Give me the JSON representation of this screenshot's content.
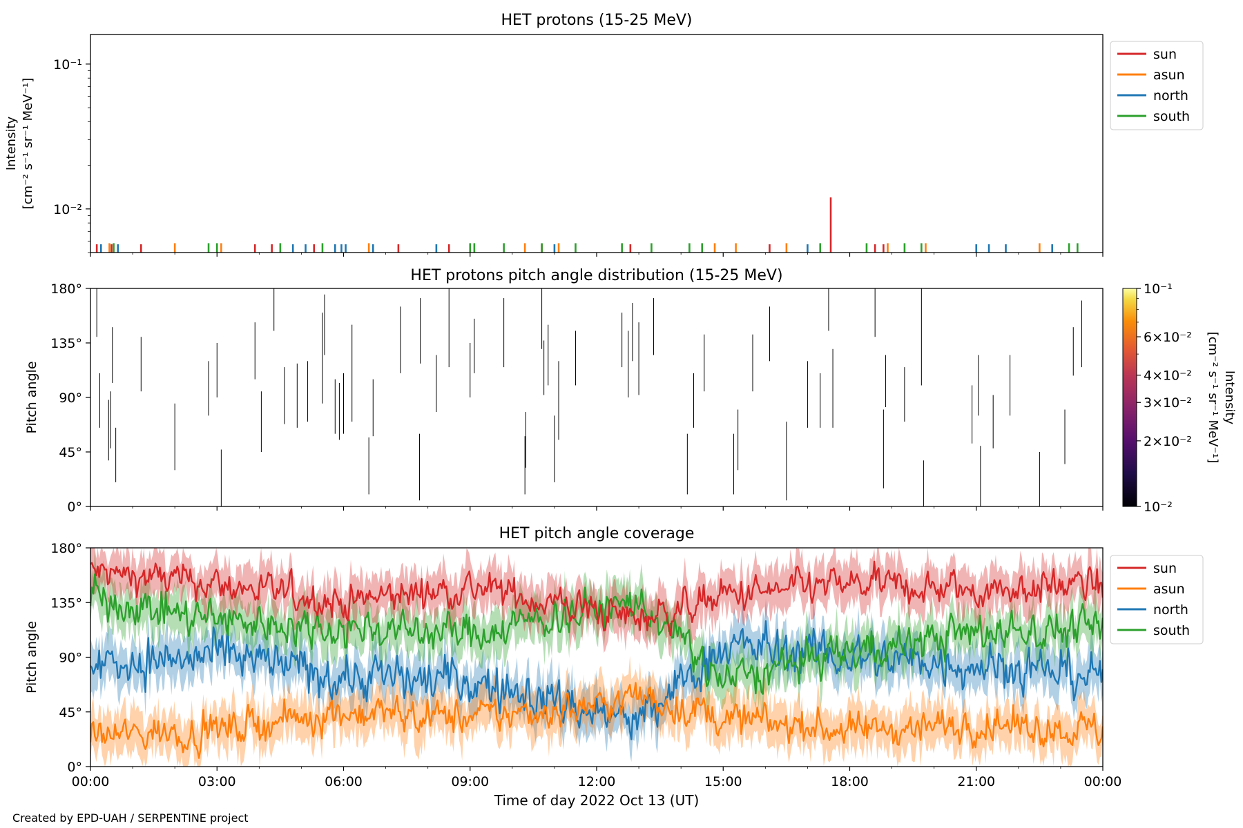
{
  "colors": {
    "sun": "#d62728",
    "asun": "#ff7f0e",
    "north": "#1f77b4",
    "south": "#2ca02c"
  },
  "credit": "Created by EPD-UAH / SERPENTINE project",
  "chart_data": [
    {
      "type": "line",
      "title": "HET protons (15-25 MeV)",
      "ylabel_line1": "Intensity",
      "ylabel_line2": "[cm⁻² s⁻¹ sr⁻¹ MeV⁻¹]",
      "yscale": "log",
      "ylim": [
        0.005,
        0.16
      ],
      "xlim_hours": [
        0,
        24
      ],
      "yticks": [
        {
          "v": 0.1,
          "label": "10⁻¹"
        },
        {
          "v": 0.01,
          "label": "10⁻²"
        }
      ],
      "legend": {
        "placement": "upper-right-outside",
        "entries": [
          "sun",
          "asun",
          "north",
          "south"
        ]
      },
      "series": [
        {
          "name": "sun",
          "base": 0.0057,
          "x": [
            0.15,
            0.5,
            1.2,
            3.9,
            4.3,
            5.3,
            7.3,
            8.5,
            10.7,
            12.8,
            16.1,
            17.55,
            18.6,
            18.8
          ],
          "peak": {
            "x": 17.55,
            "y": 0.012
          }
        },
        {
          "name": "asun",
          "base": 0.0058,
          "x": [
            0.45,
            2.0,
            3.1,
            6.6,
            10.3,
            11.1,
            14.8,
            15.3,
            16.5,
            18.9,
            19.8,
            22.5
          ],
          "peak": null
        },
        {
          "name": "north",
          "base": 0.0057,
          "x": [
            0.25,
            0.65,
            4.8,
            5.1,
            5.8,
            5.95,
            6.05,
            6.7,
            8.2,
            11.0,
            17.0,
            21.0,
            21.3,
            21.7,
            22.8
          ],
          "peak": null
        },
        {
          "name": "south",
          "base": 0.0058,
          "x": [
            0.55,
            2.8,
            3.0,
            4.5,
            5.5,
            9.0,
            9.1,
            9.8,
            10.7,
            11.5,
            12.6,
            13.3,
            14.2,
            14.5,
            17.3,
            18.4,
            19.3,
            19.7,
            23.2,
            23.4
          ],
          "peak": null
        }
      ]
    },
    {
      "type": "heatmap",
      "title": "HET protons pitch angle distribution (15-25 MeV)",
      "ylabel": "Pitch angle",
      "ylim": [
        0,
        180
      ],
      "yticks": [
        "0°",
        "45°",
        "90°",
        "135°",
        "180°"
      ],
      "colorbar": {
        "label_line1": "Intensity",
        "label_line2": "[cm⁻² s⁻¹ sr⁻¹ MeV⁻¹]",
        "scale": "log",
        "range": [
          0.01,
          0.1
        ],
        "ticks": [
          "10⁻²",
          "2×10⁻²",
          "3×10⁻²",
          "4×10⁻²",
          "6×10⁻²",
          "10⁻¹"
        ]
      },
      "segments": [
        [
          0.15,
          140,
          180
        ],
        [
          0.22,
          65,
          110
        ],
        [
          0.43,
          38,
          88
        ],
        [
          0.48,
          48,
          95
        ],
        [
          0.52,
          102,
          148
        ],
        [
          0.6,
          20,
          65
        ],
        [
          1.2,
          95,
          140
        ],
        [
          2.0,
          30,
          85
        ],
        [
          2.8,
          75,
          120
        ],
        [
          3.0,
          90,
          135
        ],
        [
          3.1,
          0,
          47
        ],
        [
          3.9,
          105,
          152
        ],
        [
          4.05,
          45,
          95
        ],
        [
          4.35,
          145,
          180
        ],
        [
          4.6,
          68,
          115
        ],
        [
          4.9,
          65,
          118
        ],
        [
          5.15,
          70,
          120
        ],
        [
          5.5,
          85,
          160
        ],
        [
          5.55,
          125,
          175
        ],
        [
          5.8,
          60,
          105
        ],
        [
          5.9,
          55,
          102
        ],
        [
          6.0,
          60,
          110
        ],
        [
          6.2,
          70,
          150
        ],
        [
          6.6,
          10,
          57
        ],
        [
          6.7,
          58,
          105
        ],
        [
          7.35,
          110,
          165
        ],
        [
          7.8,
          5,
          60
        ],
        [
          7.82,
          118,
          172
        ],
        [
          8.2,
          78,
          125
        ],
        [
          8.5,
          115,
          180
        ],
        [
          9.0,
          90,
          135
        ],
        [
          9.1,
          110,
          155
        ],
        [
          9.8,
          115,
          172
        ],
        [
          10.3,
          10,
          58
        ],
        [
          10.32,
          32,
          78
        ],
        [
          10.7,
          130,
          180
        ],
        [
          10.75,
          92,
          137
        ],
        [
          10.85,
          100,
          150
        ],
        [
          11.0,
          20,
          75
        ],
        [
          11.1,
          55,
          120
        ],
        [
          11.5,
          100,
          145
        ],
        [
          12.6,
          115,
          160
        ],
        [
          12.75,
          90,
          145
        ],
        [
          12.85,
          120,
          168
        ],
        [
          13.0,
          92,
          152
        ],
        [
          13.35,
          125,
          172
        ],
        [
          14.15,
          10,
          60
        ],
        [
          14.3,
          65,
          110
        ],
        [
          14.55,
          95,
          142
        ],
        [
          15.25,
          10,
          60
        ],
        [
          15.35,
          30,
          80
        ],
        [
          15.7,
          95,
          142
        ],
        [
          16.1,
          120,
          165
        ],
        [
          16.5,
          5,
          70
        ],
        [
          17.0,
          65,
          120
        ],
        [
          17.3,
          65,
          110
        ],
        [
          17.5,
          145,
          180
        ],
        [
          17.6,
          65,
          130
        ],
        [
          18.6,
          140,
          180
        ],
        [
          18.8,
          15,
          80
        ],
        [
          18.85,
          82,
          125
        ],
        [
          19.3,
          70,
          115
        ],
        [
          19.7,
          100,
          180
        ],
        [
          19.75,
          0,
          38
        ],
        [
          20.9,
          52,
          100
        ],
        [
          21.05,
          75,
          125
        ],
        [
          21.1,
          0,
          50
        ],
        [
          21.4,
          48,
          92
        ],
        [
          21.8,
          75,
          125
        ],
        [
          22.5,
          0,
          45
        ],
        [
          23.1,
          35,
          80
        ],
        [
          23.3,
          108,
          148
        ],
        [
          23.5,
          115,
          170
        ]
      ]
    },
    {
      "type": "line",
      "title": "HET pitch angle coverage",
      "ylabel": "Pitch angle",
      "xlabel": "Time of day 2022 Oct 13 (UT)",
      "ylim": [
        0,
        180
      ],
      "yticks": [
        "0°",
        "45°",
        "90°",
        "135°",
        "180°"
      ],
      "xticks": [
        "00:00",
        "03:00",
        "06:00",
        "09:00",
        "12:00",
        "15:00",
        "18:00",
        "21:00",
        "00:00"
      ],
      "legend": {
        "placement": "upper-right-outside",
        "entries": [
          "sun",
          "asun",
          "north",
          "south"
        ]
      },
      "band_note": "",
      "series": [
        {
          "name": "sun",
          "mean_hours": [
            0,
            3,
            6,
            9,
            12,
            13,
            15,
            18,
            21,
            24
          ],
          "mean_deg": [
            160,
            150,
            135,
            148,
            128,
            122,
            140,
            150,
            145,
            150
          ],
          "spread": 22
        },
        {
          "name": "asun",
          "mean_hours": [
            0,
            3,
            6,
            9,
            12,
            13,
            15,
            18,
            21,
            24
          ],
          "mean_deg": [
            25,
            30,
            45,
            40,
            50,
            58,
            40,
            30,
            35,
            30
          ],
          "spread": 22
        },
        {
          "name": "north",
          "mean_hours": [
            0,
            3,
            6,
            9,
            12,
            13,
            15,
            18,
            21,
            24
          ],
          "mean_deg": [
            85,
            90,
            75,
            70,
            45,
            35,
            100,
            90,
            85,
            75
          ],
          "spread": 30
        },
        {
          "name": "south",
          "mean_hours": [
            0,
            3,
            6,
            9,
            12,
            13,
            15,
            18,
            21,
            24
          ],
          "mean_deg": [
            140,
            120,
            115,
            110,
            130,
            135,
            70,
            95,
            110,
            115
          ],
          "spread": 25
        }
      ]
    }
  ]
}
